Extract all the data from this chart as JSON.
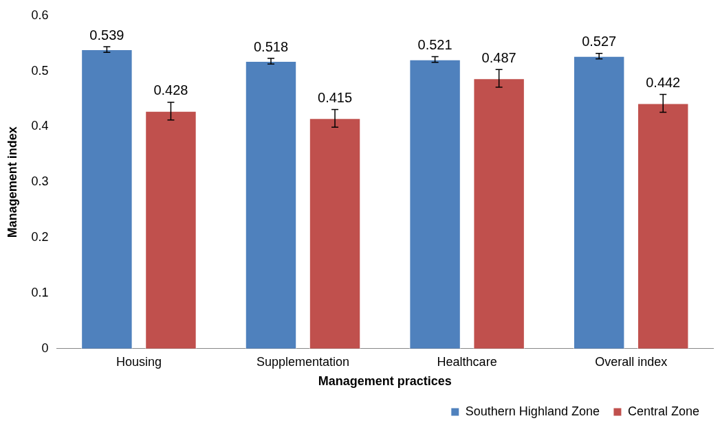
{
  "chart_data": {
    "type": "bar",
    "xlabel": "Management practices",
    "ylabel": "Management index",
    "categories": [
      "Housing",
      "Supplementation",
      "Healthcare",
      "Overall index"
    ],
    "series": [
      {
        "name": "Southern Highland Zone",
        "color": "#4f81bd",
        "values": [
          0.539,
          0.518,
          0.521,
          0.527
        ],
        "errors": [
          0.005,
          0.005,
          0.005,
          0.005
        ]
      },
      {
        "name": "Central Zone",
        "color": "#c0504d",
        "values": [
          0.428,
          0.415,
          0.487,
          0.442
        ],
        "errors": [
          0.016,
          0.016,
          0.016,
          0.016
        ]
      }
    ],
    "ylim": [
      0,
      0.6
    ],
    "yticks": [
      0,
      0.1,
      0.2,
      0.3,
      0.4,
      0.5,
      0.6
    ],
    "grid": false,
    "legend": "bottom right",
    "data_labels": true
  }
}
